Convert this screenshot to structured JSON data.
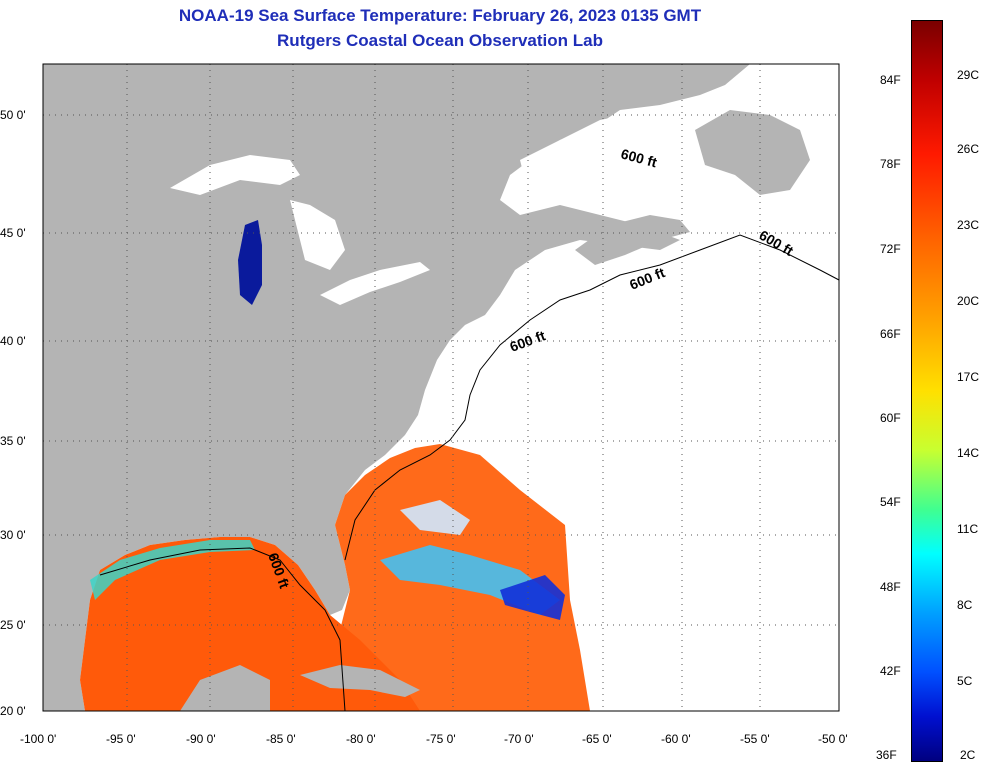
{
  "title": {
    "line1": "NOAA-19 Sea Surface Temperature:  February 26, 2023 0135 GMT",
    "line2": "Rutgers Coastal Ocean Observation Lab"
  },
  "map": {
    "lat_ticks": [
      "50 0'",
      "45 0'",
      "40 0'",
      "35 0'",
      "30 0'",
      "25 0'",
      "20 0'"
    ],
    "lon_ticks": [
      "-100 0'",
      "-95 0'",
      "-90 0'",
      "-85 0'",
      "-80 0'",
      "-75 0'",
      "-70 0'",
      "-65 0'",
      "-60 0'",
      "-55 0'",
      "-50 0'"
    ],
    "contour_labels": [
      "600 ft",
      "600 ft",
      "600 ft",
      "600 ft",
      "600 ft"
    ],
    "land_color": "#b4b4b4",
    "no_data_color": "#ffffff"
  },
  "colorbar": {
    "fahrenheit": [
      "84F",
      "78F",
      "72F",
      "66F",
      "60F",
      "54F",
      "48F",
      "42F",
      "36F"
    ],
    "celsius": [
      "29C",
      "26C",
      "23C",
      "20C",
      "17C",
      "14C",
      "11C",
      "8C",
      "5C",
      "2C"
    ]
  }
}
